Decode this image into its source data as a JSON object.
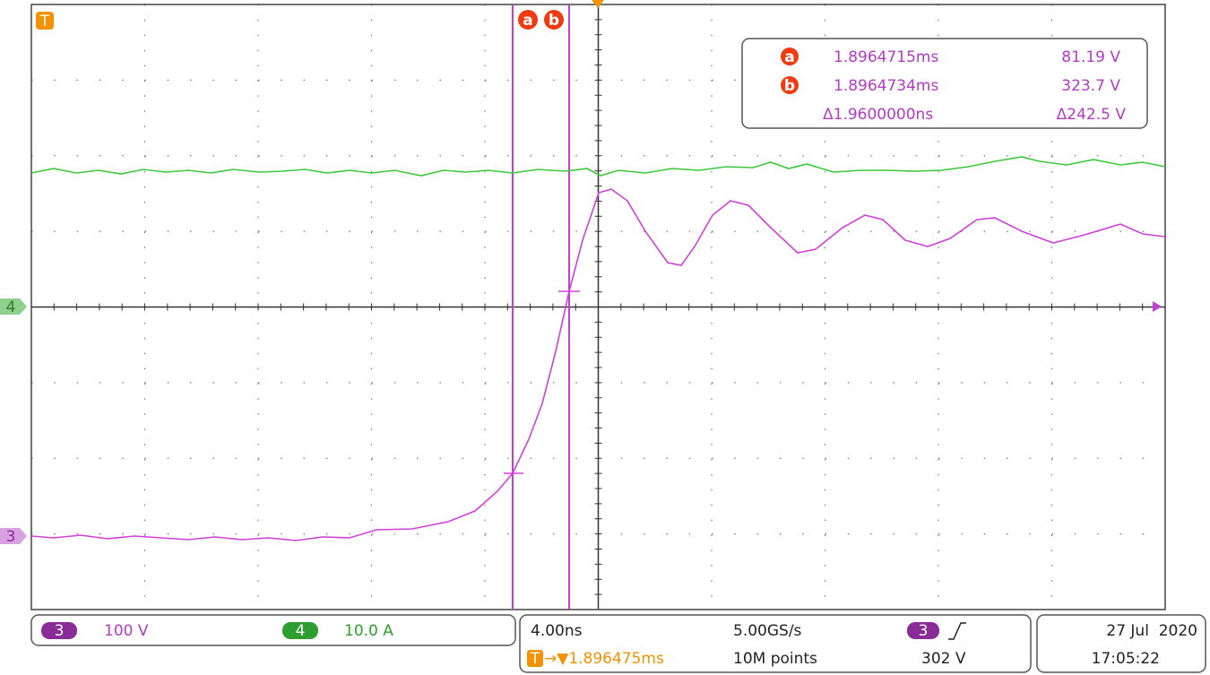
{
  "markers": {
    "trigger": "T",
    "ch4": "4",
    "ch3": "3",
    "cursor_a": "a",
    "cursor_b": "b"
  },
  "readout": {
    "rows": [
      {
        "label": "a",
        "time": "1.8964715ms",
        "value": "81.19 V"
      },
      {
        "label": "b",
        "time": "1.8964734ms",
        "value": "323.7 V"
      },
      {
        "time": "Δ1.9600000ns",
        "value": "Δ242.5 V"
      }
    ]
  },
  "channels": [
    {
      "badge": "3",
      "scale": "100 V"
    },
    {
      "badge": "4",
      "scale": "10.0 A"
    }
  ],
  "acquisition": {
    "timebase": "4.00ns",
    "sample_rate": "5.00GS/s",
    "trigger_badge": "3",
    "trigger_level": "302 V",
    "trigger_icon": "T",
    "trigger_position": "→▼1.896475ms",
    "record_length": "10M points"
  },
  "clock": {
    "date": "27 Jul  2020",
    "time": "17:05:22"
  }
}
